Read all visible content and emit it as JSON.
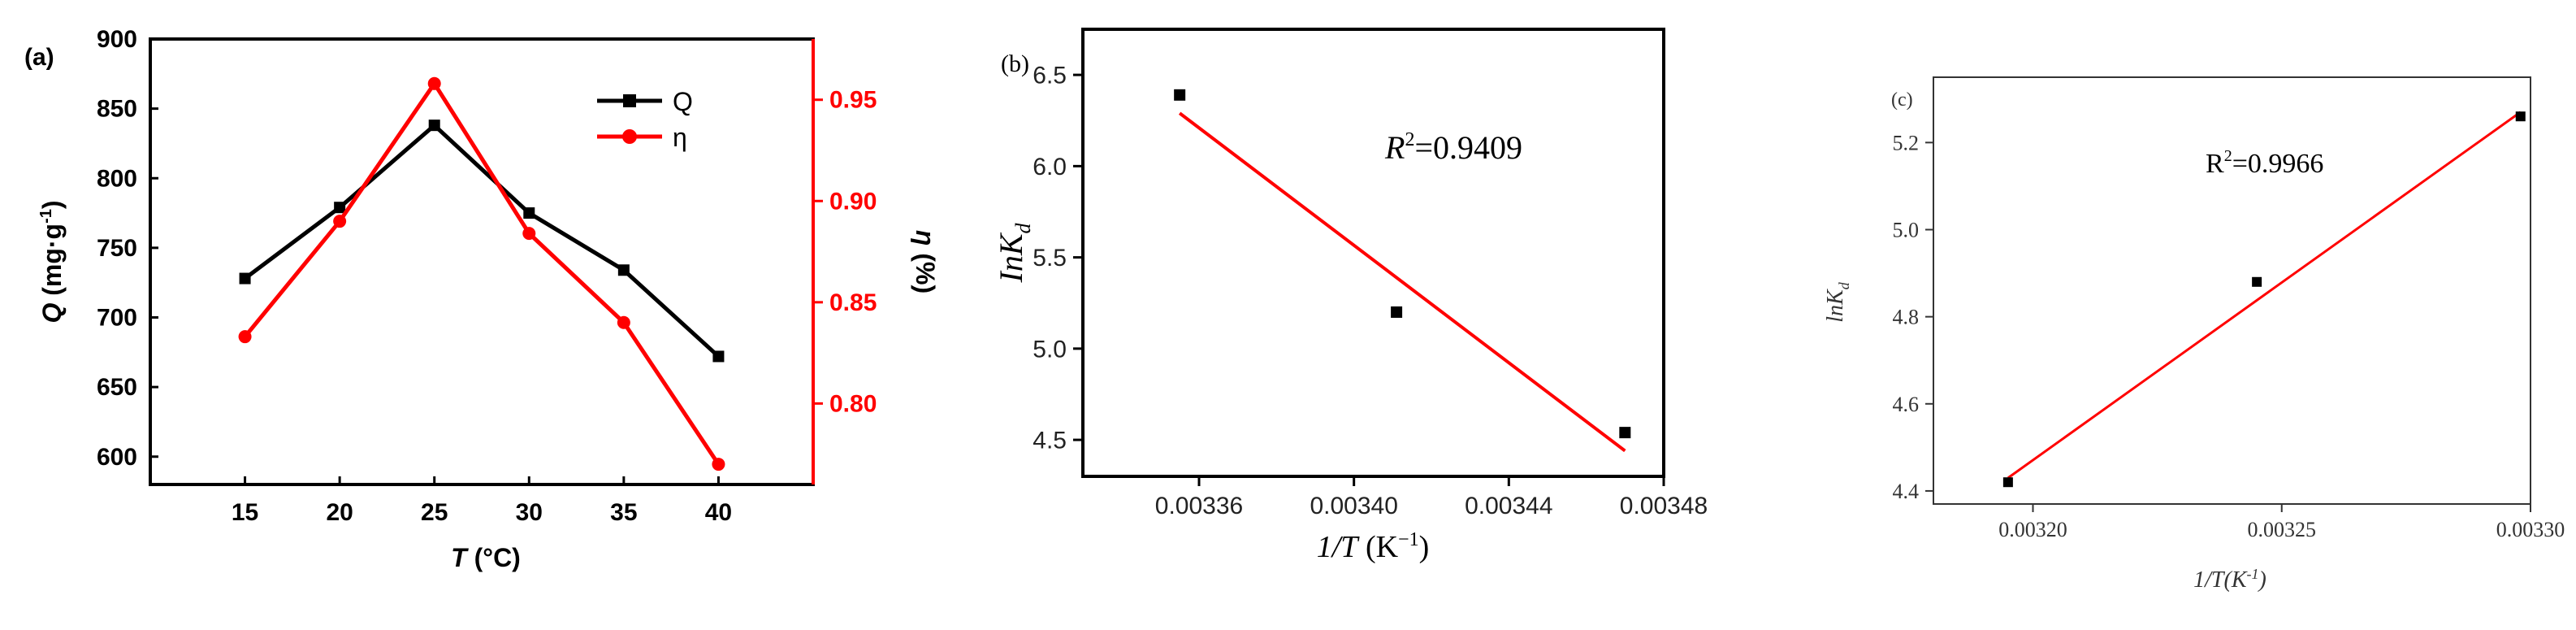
{
  "chart_data": [
    {
      "panel_label": "(a)",
      "type": "line",
      "x": [
        15,
        20,
        25,
        30,
        35,
        40
      ],
      "x_tick_labels": [
        "15",
        "20",
        "25",
        "30",
        "35",
        "40"
      ],
      "xlim": [
        10,
        45
      ],
      "xlabel_var": "T",
      "xlabel_unit": " (°C)",
      "ylim_left": [
        580,
        900
      ],
      "ylim_right": [
        0.76,
        0.98
      ],
      "y_left_ticks": [
        "600",
        "650",
        "700",
        "750",
        "800",
        "850",
        "900"
      ],
      "y_right_ticks": [
        "0.80",
        "0.85",
        "0.90",
        "0.95"
      ],
      "ylabel_left_var": "Q",
      "ylabel_left_unit": " (mg·g",
      "ylabel_left_sup": "-1",
      "ylabel_right_var": "η",
      "ylabel_right_unit": " (%)",
      "legend_position": "top-right",
      "series": [
        {
          "name": "Q",
          "axis": "left",
          "color": "#000000",
          "marker": "square",
          "values": [
            728,
            779,
            838,
            775,
            734,
            672
          ]
        },
        {
          "name": "η",
          "axis": "right",
          "color": "#ff0000",
          "marker": "circle",
          "values": [
            0.833,
            0.89,
            0.958,
            0.884,
            0.84,
            0.77
          ]
        }
      ]
    },
    {
      "panel_label": "(b)",
      "type": "scatter",
      "points": [
        [
          0.003355,
          6.39
        ],
        [
          0.003411,
          5.2
        ],
        [
          0.00347,
          4.54
        ]
      ],
      "fit_line": [
        [
          0.003355,
          6.29
        ],
        [
          0.00347,
          4.44
        ]
      ],
      "xlim": [
        0.00333,
        0.00348
      ],
      "ylim": [
        4.3,
        6.75
      ],
      "x_ticks": [
        0.00336,
        0.0034,
        0.00344,
        0.00348
      ],
      "x_tick_labels": [
        "0.00336",
        "0.00340",
        "0.00344",
        "0.00348"
      ],
      "y_ticks": [
        4.5,
        5.0,
        5.5,
        6.0,
        6.5
      ],
      "y_tick_labels": [
        "4.5",
        "5.0",
        "5.5",
        "6.0",
        "6.5"
      ],
      "xlabel_main": "1/T",
      "xlabel_unit": " (K",
      "xlabel_sup": "−1",
      "ylabel_main": "InK",
      "ylabel_sub": "d",
      "annotation_var": "R",
      "annotation_sup": "2",
      "annotation_value": "=0.9409",
      "point_color": "#000000",
      "line_color": "#ff0000"
    },
    {
      "panel_label": "(c)",
      "type": "scatter",
      "points": [
        [
          0.003195,
          4.42
        ],
        [
          0.003245,
          4.88
        ],
        [
          0.003298,
          5.26
        ]
      ],
      "fit_line": [
        [
          0.003195,
          4.43
        ],
        [
          0.003298,
          5.27
        ]
      ],
      "xlim": [
        0.00318,
        0.0033
      ],
      "ylim": [
        4.37,
        5.35
      ],
      "x_ticks": [
        0.0032,
        0.00325,
        0.0033
      ],
      "x_tick_labels": [
        "0.00320",
        "0.00325",
        "0.00330"
      ],
      "y_ticks": [
        4.4,
        4.6,
        4.8,
        5.0,
        5.2
      ],
      "y_tick_labels": [
        "4.4",
        "4.6",
        "4.8",
        "5.0",
        "5.2"
      ],
      "xlabel_main": "1/T(K",
      "xlabel_sup": "-1",
      "xlabel_close": ")",
      "ylabel_main": "lnK",
      "ylabel_sub": "d",
      "annotation_var": "R",
      "annotation_sup": "2",
      "annotation_value": "=0.9966",
      "point_color": "#000000",
      "line_color": "#ff0000"
    }
  ]
}
